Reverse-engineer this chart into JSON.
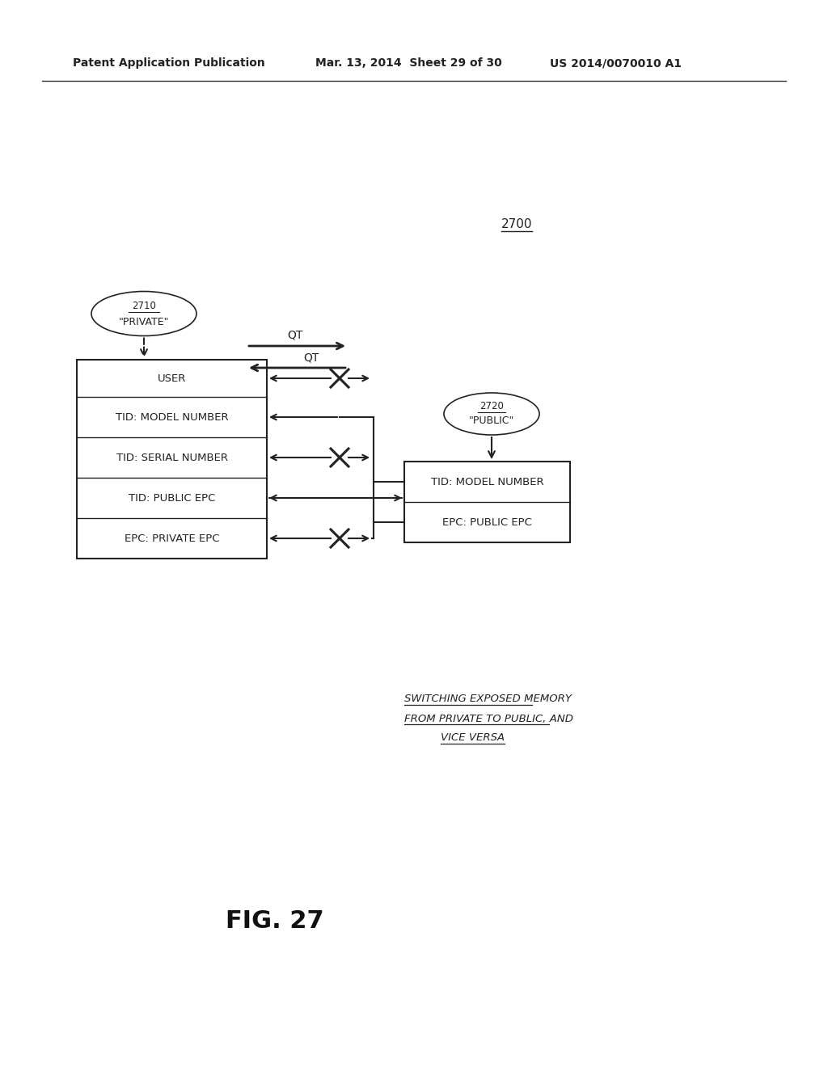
{
  "bg_color": "#ffffff",
  "header_left": "Patent Application Publication",
  "header_mid": "Mar. 13, 2014  Sheet 29 of 30",
  "header_right": "US 2014/0070010 A1",
  "fig_label": "FIG. 27",
  "diagram_label": "2700",
  "ellipse_private_label": "2710",
  "ellipse_private_text": "\"PRIVATE\"",
  "ellipse_public_label": "2720",
  "ellipse_public_text": "\"PUBLIC\"",
  "left_box_rows": [
    "USER",
    "TID: MODEL NUMBER",
    "TID: SERIAL NUMBER",
    "TID: PUBLIC EPC",
    "EPC: PRIVATE EPC"
  ],
  "right_box_rows": [
    "TID: MODEL NUMBER",
    "EPC: PUBLIC EPC"
  ],
  "caption_line1": "SWITCHING EXPOSED MEMORY",
  "caption_line2": "FROM PRIVATE TO PUBLIC, AND",
  "caption_line3": "VICE VERSA"
}
